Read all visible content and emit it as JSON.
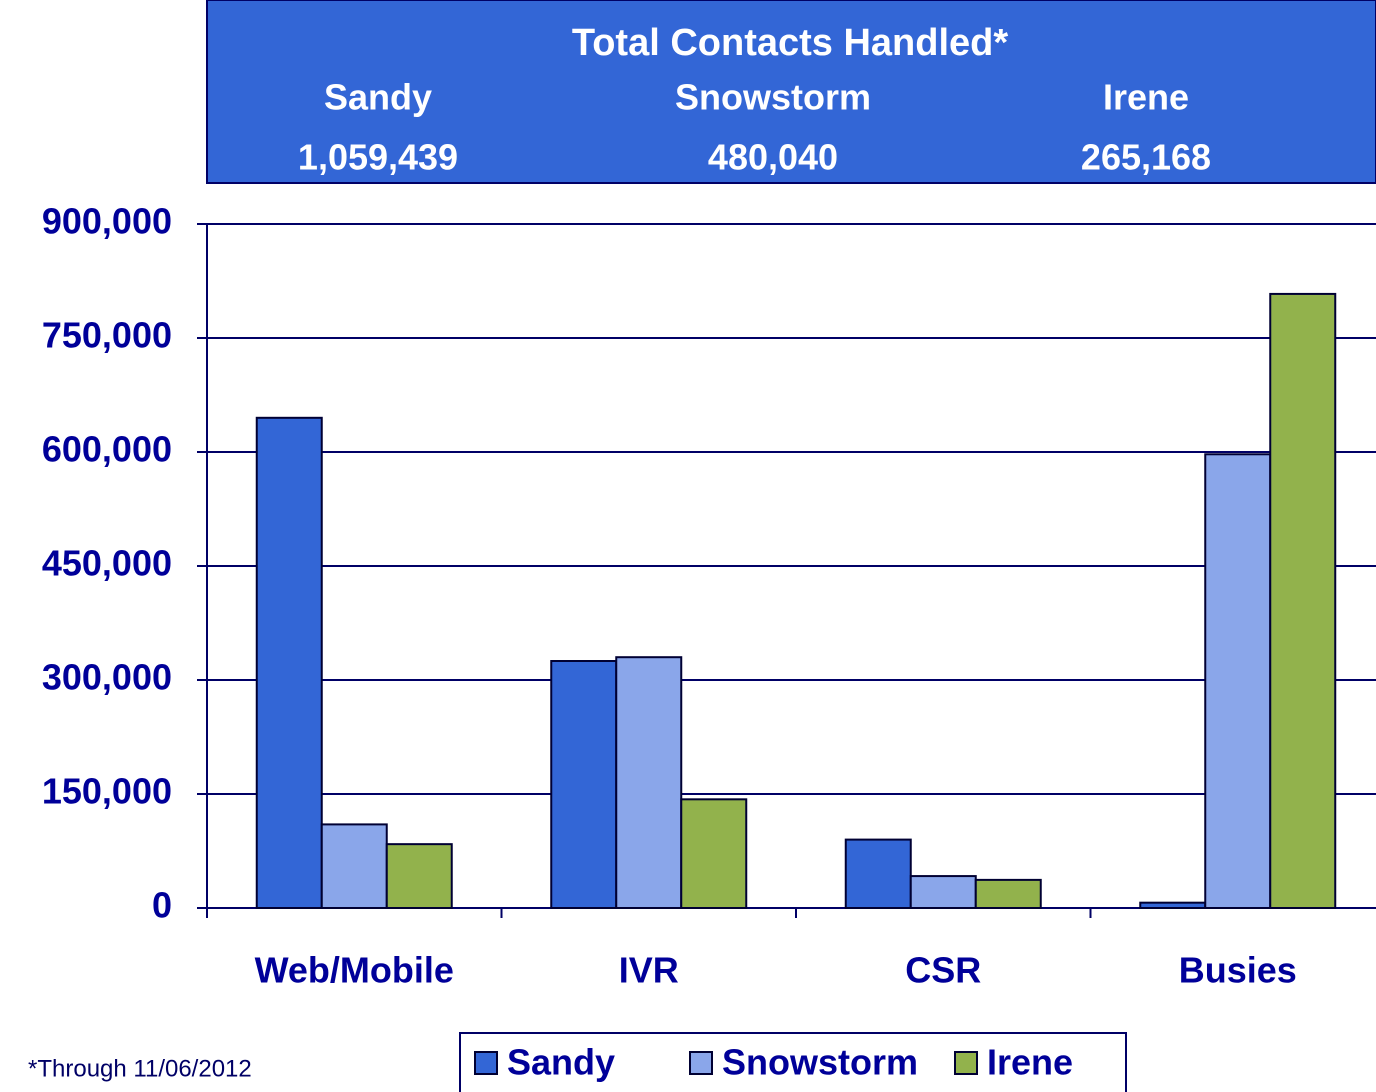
{
  "chart_data": {
    "type": "bar",
    "summary": {
      "title": "Total Contacts Handled*",
      "totals": [
        {
          "value": 1059439,
          "label": "1,059,439"
        },
        {
          "value": 480040,
          "label": "480,040"
        },
        {
          "value": 265168,
          "label": "265,168"
        }
      ]
    },
    "categories": [
      "Web/Mobile",
      "IVR",
      "CSR",
      "Busies"
    ],
    "series": [
      {
        "name": "Sandy",
        "color": "#3366d6",
        "values": [
          645000,
          325000,
          90000,
          7000
        ]
      },
      {
        "name": "Snowstorm",
        "color": "#8aa6ea",
        "values": [
          110000,
          330000,
          42000,
          597000
        ]
      },
      {
        "name": "Irene",
        "color": "#92b24c",
        "values": [
          84000,
          143000,
          37000,
          808000
        ]
      }
    ],
    "ylim": [
      0,
      900000
    ],
    "yticks": [
      0,
      {
        "value": 150000,
        "label": "150,000"
      },
      {
        "value": 300000,
        "label": "300,000"
      },
      {
        "value": 450000,
        "label": "450,000"
      },
      {
        "value": 600000,
        "label": "600,000"
      },
      {
        "value": 750000,
        "label": "750,000"
      },
      {
        "value": 900000,
        "label": "900,000"
      }
    ],
    "grid": true,
    "footnote": "*Through 11/06/2012"
  }
}
